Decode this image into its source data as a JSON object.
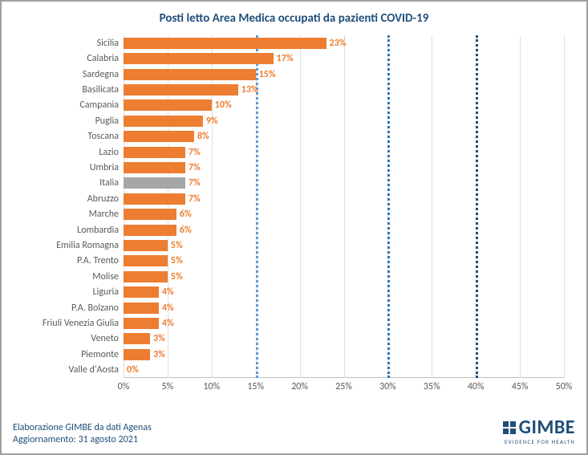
{
  "chart": {
    "type": "bar-horizontal",
    "title": "Posti letto Area Medica occupati da pazienti COVID-19",
    "title_color": "#1f4e79",
    "title_fontsize": 15,
    "bar_color": "#ed7d31",
    "highlight_bar_color": "#a6a6a6",
    "label_color": "#ed7d31",
    "grid_color": "#e0e0e0",
    "background_color": "#ffffff",
    "xlim": [
      0,
      50
    ],
    "xtick_step": 5,
    "xtick_suffix": "%",
    "thresholds": [
      {
        "value": 15,
        "color": "#5b9bd5"
      },
      {
        "value": 30,
        "color": "#2e75b6"
      },
      {
        "value": 40,
        "color": "#1f4e79"
      }
    ],
    "categories": [
      {
        "label": "Sicilia",
        "value": 23,
        "value_label": "23%"
      },
      {
        "label": "Calabria",
        "value": 17,
        "value_label": "17%"
      },
      {
        "label": "Sardegna",
        "value": 15,
        "value_label": "15%"
      },
      {
        "label": "Basilicata",
        "value": 13,
        "value_label": "13%"
      },
      {
        "label": "Campania",
        "value": 10,
        "value_label": "10%"
      },
      {
        "label": "Puglia",
        "value": 9,
        "value_label": "9%"
      },
      {
        "label": "Toscana",
        "value": 8,
        "value_label": "8%"
      },
      {
        "label": "Lazio",
        "value": 7,
        "value_label": "7%"
      },
      {
        "label": "Umbria",
        "value": 7,
        "value_label": "7%"
      },
      {
        "label": "Italia",
        "value": 7,
        "value_label": "7%",
        "highlight": true
      },
      {
        "label": "Abruzzo",
        "value": 7,
        "value_label": "7%"
      },
      {
        "label": "Marche",
        "value": 6,
        "value_label": "6%"
      },
      {
        "label": "Lombardia",
        "value": 6,
        "value_label": "6%"
      },
      {
        "label": "Emilia Romagna",
        "value": 5,
        "value_label": "5%"
      },
      {
        "label": "P.A. Trento",
        "value": 5,
        "value_label": "5%"
      },
      {
        "label": "Molise",
        "value": 5,
        "value_label": "5%"
      },
      {
        "label": "Liguria",
        "value": 4,
        "value_label": "4%"
      },
      {
        "label": "P.A. Bolzano",
        "value": 4,
        "value_label": "4%"
      },
      {
        "label": "Friuli Venezia Giulia",
        "value": 4,
        "value_label": "4%"
      },
      {
        "label": "Veneto",
        "value": 3,
        "value_label": "3%"
      },
      {
        "label": "Piemonte",
        "value": 3,
        "value_label": "3%"
      },
      {
        "label": "Valle d'Aosta",
        "value": 0,
        "value_label": "0%"
      }
    ]
  },
  "footer": {
    "line1": "Elaborazione GIMBE da dati Agenas",
    "line2": "Aggiornamento: 31 agosto 2021",
    "color": "#1f4e79"
  },
  "logo": {
    "name": "GIMBE",
    "tagline": "EVIDENCE FOR HEALTH",
    "color": "#1f4e79"
  }
}
